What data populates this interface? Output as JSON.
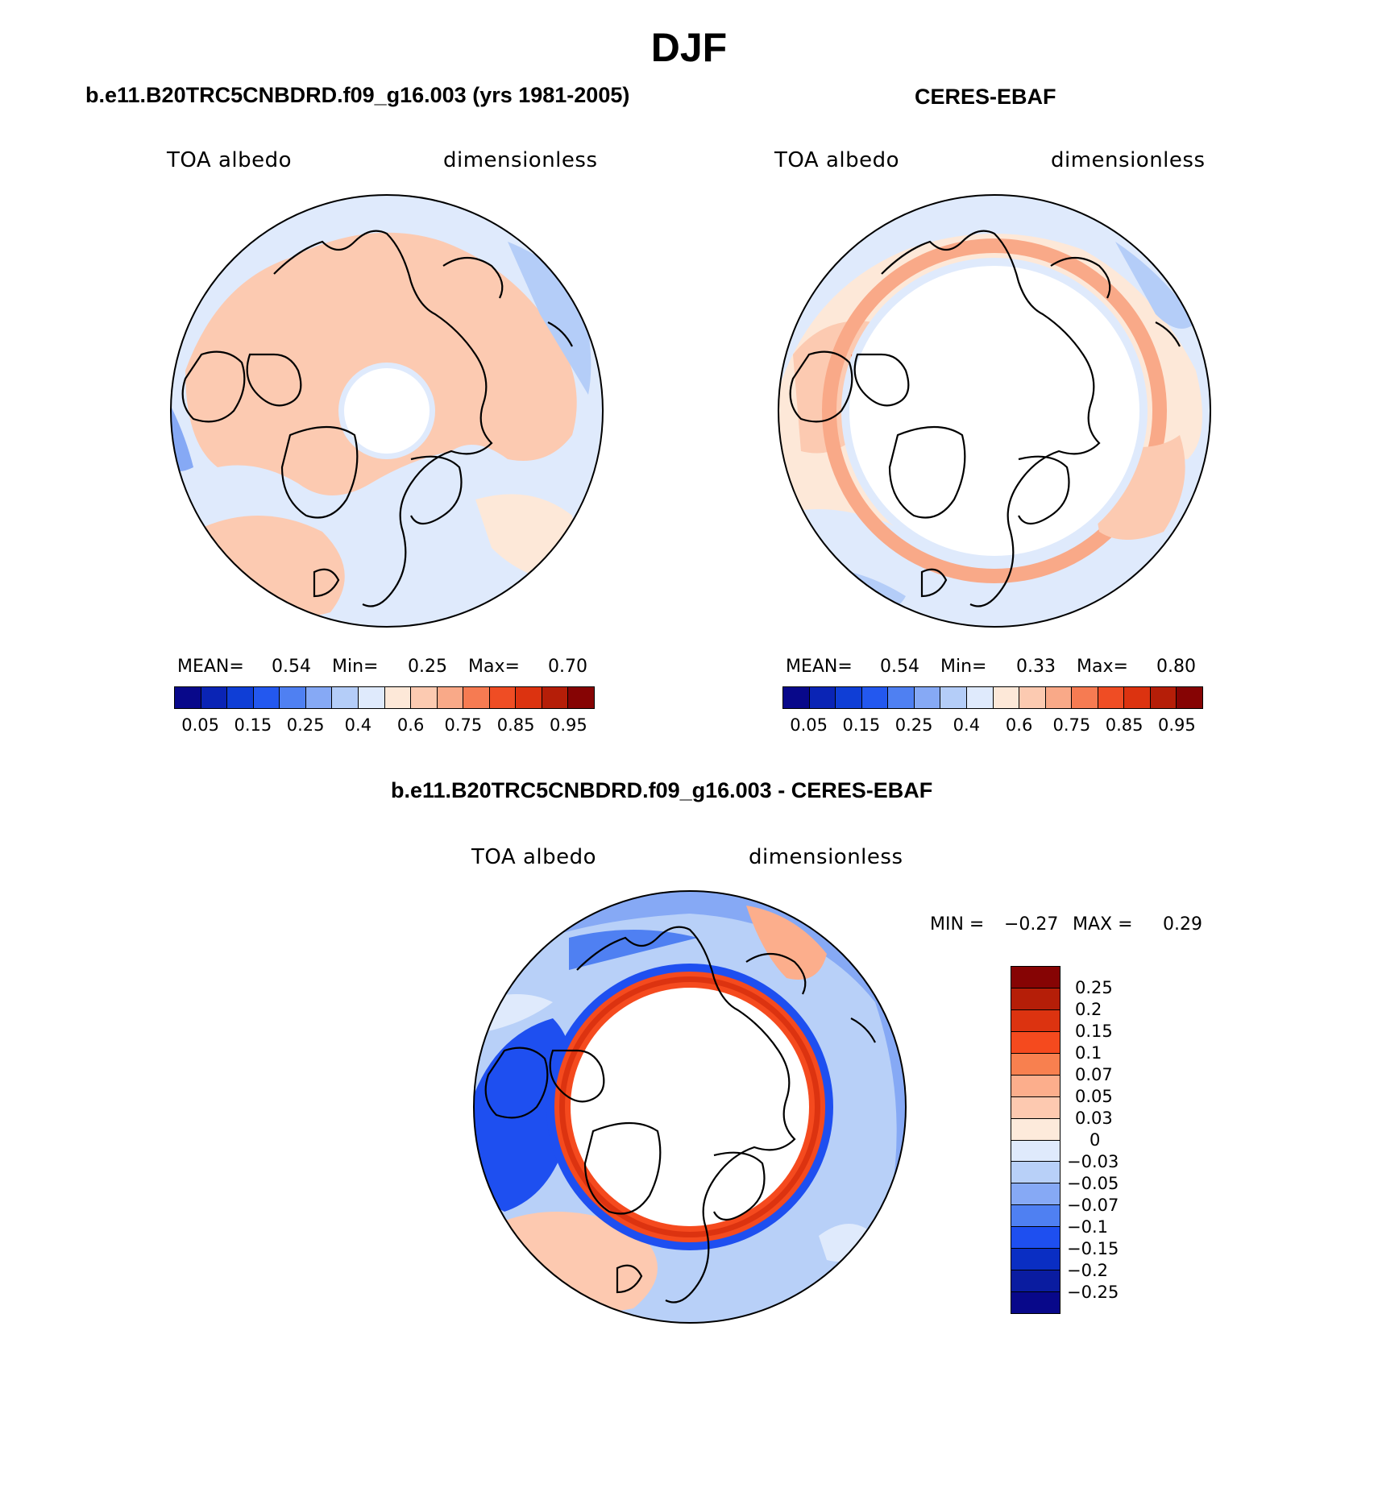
{
  "title": "DJF",
  "panels": {
    "model": {
      "title": "b.e11.B20TRC5CNBDRD.f09_g16.003 (yrs 1981-2005)",
      "left_label": "TOA albedo",
      "right_label": "dimensionless",
      "mean_label": "MEAN=",
      "mean": "0.54",
      "min_label": "Min=",
      "min": "0.25",
      "max_label": "Max=",
      "max": "0.70"
    },
    "obs": {
      "title": "CERES-EBAF",
      "left_label": "TOA albedo",
      "right_label": "dimensionless",
      "mean_label": "MEAN=",
      "mean": "0.54",
      "min_label": "Min=",
      "min": "0.33",
      "max_label": "Max=",
      "max": "0.80"
    },
    "diff": {
      "title": "b.e11.B20TRC5CNBDRD.f09_g16.003 - CERES-EBAF",
      "left_label": "TOA albedo",
      "right_label": "dimensionless",
      "min_label": "MIN =",
      "min": "−0.27",
      "max_label": "MAX =",
      "max": "0.29"
    }
  },
  "colorbar_abs": {
    "tick_labels": [
      "0.05",
      "0.15",
      "0.25",
      "0.4",
      "0.6",
      "0.75",
      "0.85",
      "0.95"
    ],
    "colors": [
      "#08088a",
      "#0a24b5",
      "#0f3ed6",
      "#2358ef",
      "#4f80f2",
      "#86a9f5",
      "#b4cdf8",
      "#dfeafc",
      "#fde8d8",
      "#fccab1",
      "#f9a988",
      "#f67b52",
      "#ef4d24",
      "#dc3310",
      "#b51e08",
      "#860404"
    ]
  },
  "colorbar_diff": {
    "tick_labels": [
      "0.25",
      "0.2",
      "0.15",
      "0.1",
      "0.07",
      "0.05",
      "0.03",
      "0",
      "−0.03",
      "−0.05",
      "−0.07",
      "−0.1",
      "−0.15",
      "−0.2",
      "−0.25"
    ],
    "colors": [
      "#860404",
      "#b51e08",
      "#dc3310",
      "#f54a1e",
      "#f8804f",
      "#fcae8c",
      "#fdc9b0",
      "#fdeadb",
      "#dfeafc",
      "#b8d0f8",
      "#86a9f5",
      "#4f80f2",
      "#1e4ff0",
      "#0a2ec3",
      "#0a1ca0",
      "#08088a"
    ]
  }
}
